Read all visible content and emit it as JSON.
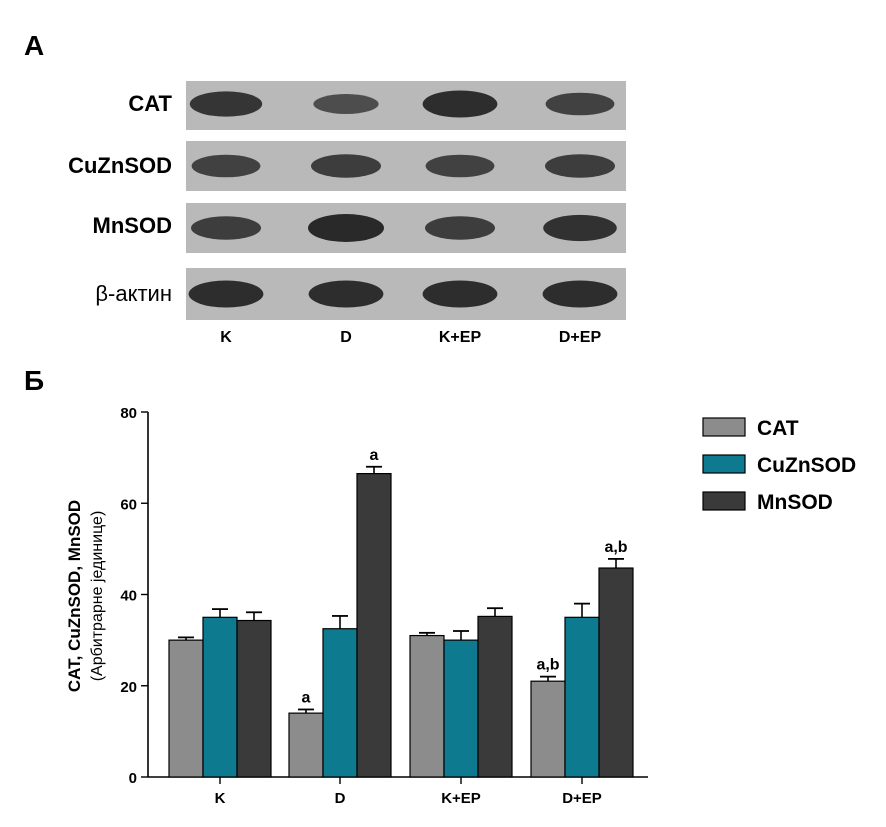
{
  "panel_a": {
    "letter": "A",
    "rows": [
      {
        "label": "CAT",
        "intensities": [
          0.85,
          0.55,
          0.95,
          0.7
        ]
      },
      {
        "label": "CuZnSOD",
        "intensities": [
          0.7,
          0.75,
          0.7,
          0.75
        ]
      },
      {
        "label": "MnSOD",
        "intensities": [
          0.75,
          1.0,
          0.75,
          0.9
        ]
      },
      {
        "label": "β-актин",
        "intensities": [
          0.95,
          0.95,
          0.95,
          0.95
        ]
      }
    ],
    "lanes": [
      "K",
      "D",
      "K+EP",
      "D+EP"
    ]
  },
  "panel_b": {
    "letter": "Б"
  },
  "chart_data": {
    "type": "bar",
    "categories": [
      "K",
      "D",
      "K+EP",
      "D+EP"
    ],
    "series": [
      {
        "name": "CAT",
        "color": "#8c8c8c",
        "values": [
          30,
          14,
          31,
          21
        ],
        "errors": [
          0.6,
          0.8,
          0.6,
          1.0
        ],
        "annotations": [
          "",
          "a",
          "",
          "a,b"
        ]
      },
      {
        "name": "CuZnSOD",
        "color": "#0d7a90",
        "values": [
          35,
          32.5,
          30,
          35
        ],
        "errors": [
          1.8,
          2.8,
          2.0,
          3.0
        ],
        "annotations": [
          "",
          "",
          "",
          ""
        ]
      },
      {
        "name": "MnSOD",
        "color": "#3a3a3a",
        "values": [
          34.3,
          66.5,
          35.2,
          45.8
        ],
        "errors": [
          1.8,
          1.5,
          1.8,
          2.0
        ],
        "annotations": [
          "",
          "a",
          "",
          "a,b"
        ]
      }
    ],
    "ylabel_line1": "CAT, CuZnSOD, MnSOD",
    "ylabel_line2": "(Арбитрарне јединице)",
    "ylim": [
      0,
      80
    ],
    "yticks": [
      0,
      20,
      40,
      60,
      80
    ],
    "legend_position": "top-right",
    "grid": false
  }
}
